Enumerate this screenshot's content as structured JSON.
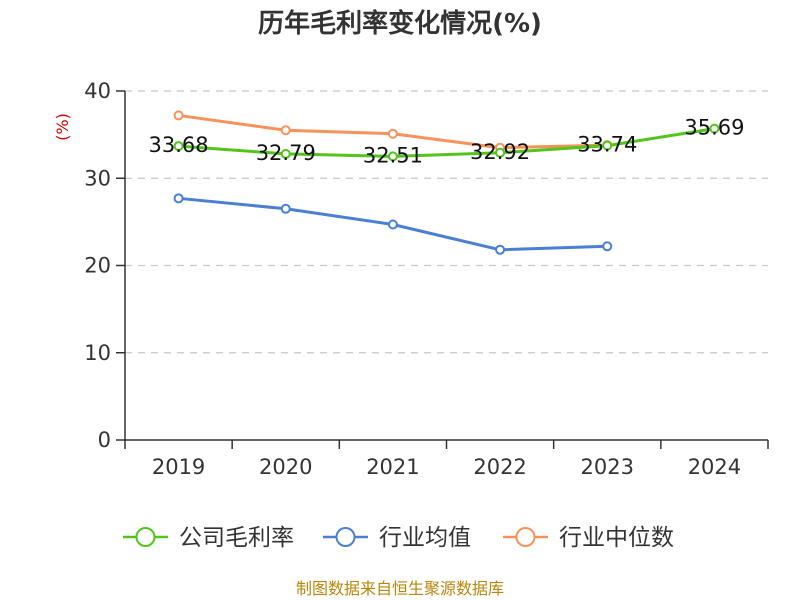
{
  "chart_data": {
    "type": "line",
    "title": "历年毛利率变化情况(%)",
    "unit_label": "(%)",
    "categories": [
      "2019",
      "2020",
      "2021",
      "2022",
      "2023",
      "2024"
    ],
    "ylim": [
      0,
      40
    ],
    "yticks": [
      0,
      10,
      20,
      30,
      40
    ],
    "grid": true,
    "legend_position": "bottom",
    "series": [
      {
        "name": "公司毛利率",
        "color": "#52c41a",
        "values": [
          33.68,
          32.79,
          32.51,
          32.92,
          33.74,
          35.69
        ],
        "labels": [
          "33.68",
          "32.79",
          "32.51",
          "32.92",
          "33.74",
          "35.69"
        ]
      },
      {
        "name": "行业均值",
        "color": "#4a7fd4",
        "values": [
          27.7,
          26.5,
          24.7,
          21.8,
          22.2,
          null
        ]
      },
      {
        "name": "行业中位数",
        "color": "#f7935a",
        "values": [
          37.2,
          35.5,
          35.1,
          33.5,
          33.8,
          null
        ]
      }
    ],
    "source": "制图数据来自恒生聚源数据库"
  }
}
